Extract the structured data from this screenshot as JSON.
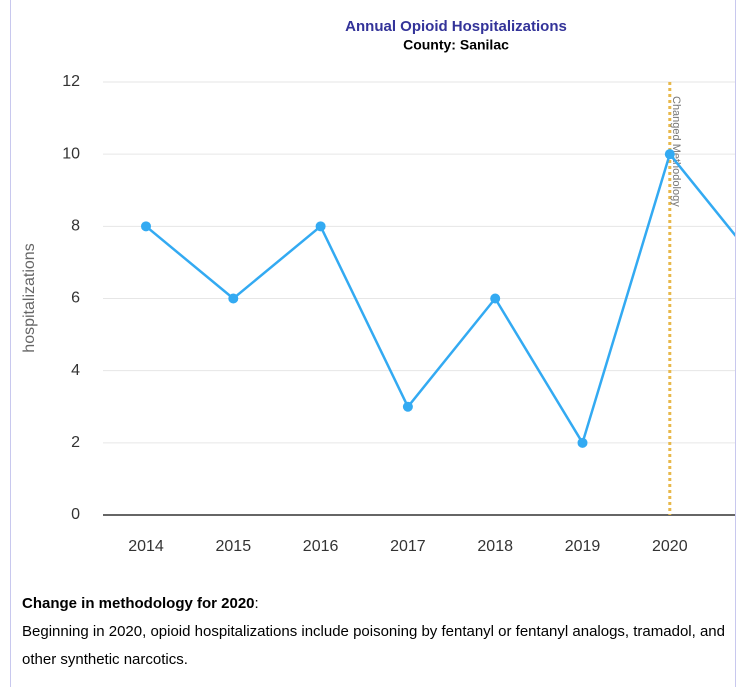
{
  "chart_data": {
    "type": "line",
    "title": "Annual Opioid Hospitalizations",
    "subtitle": "County: Sanilac",
    "y_label": "hospitalizations",
    "categories": [
      "2014",
      "2015",
      "2016",
      "2017",
      "2018",
      "2019",
      "2020",
      null
    ],
    "series": [
      {
        "name": "hospitalizations",
        "color": "#33aaf2",
        "values": [
          8,
          6,
          8,
          3,
          6,
          2,
          10,
          7
        ]
      }
    ],
    "ylim": [
      0,
      12
    ],
    "yticks": [
      0,
      2,
      4,
      6,
      8,
      10,
      12
    ],
    "grid": true,
    "annotation": {
      "label": "Changed Methodology",
      "at": "2020",
      "color": "#e8b84a"
    }
  },
  "note": {
    "heading": "Change in methodology for 2020",
    "punct": ":",
    "body": "Beginning in 2020, opioid hospitalizations include poisoning by fentanyl or fentanyl analogs, tramadol, and other synthetic narcotics."
  }
}
